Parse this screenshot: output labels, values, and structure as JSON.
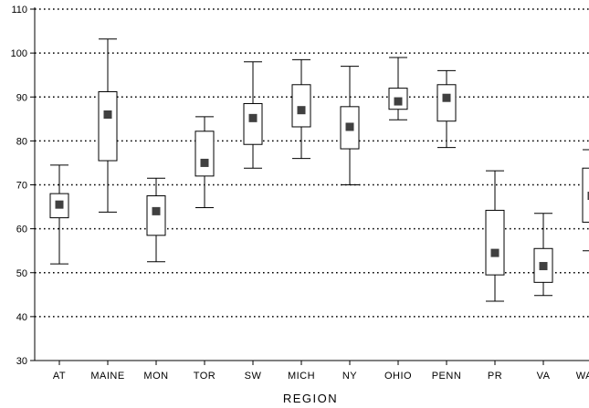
{
  "chart_data": {
    "type": "box",
    "title": "",
    "xlabel": "REGION",
    "ylabel": "",
    "ylim": [
      30,
      110
    ],
    "yticks": [
      30,
      40,
      50,
      60,
      70,
      80,
      90,
      100,
      110
    ],
    "grid": "horizontal-dotted",
    "legend": "none",
    "marker_color": "#404040",
    "box_color": "#000000",
    "categories": [
      "AT",
      "MAINE",
      "MON",
      "TOR",
      "SW",
      "MICH",
      "NY",
      "OHIO",
      "PENN",
      "PR",
      "VA",
      "WASH"
    ],
    "series": [
      {
        "values": [
          {
            "min": 52.0,
            "q1": 62.5,
            "center": 65.5,
            "q3": 68.0,
            "max": 74.5
          },
          {
            "min": 63.8,
            "q1": 75.5,
            "center": 86.0,
            "q3": 91.2,
            "max": 103.2
          },
          {
            "min": 52.5,
            "q1": 58.5,
            "center": 64.0,
            "q3": 67.5,
            "max": 71.5
          },
          {
            "min": 64.8,
            "q1": 72.0,
            "center": 75.0,
            "q3": 82.2,
            "max": 85.5
          },
          {
            "min": 73.8,
            "q1": 79.2,
            "center": 85.2,
            "q3": 88.5,
            "max": 98.0
          },
          {
            "min": 76.0,
            "q1": 83.2,
            "center": 87.0,
            "q3": 92.8,
            "max": 98.5
          },
          {
            "min": 70.0,
            "q1": 78.2,
            "center": 83.2,
            "q3": 87.8,
            "max": 97.0
          },
          {
            "min": 84.8,
            "q1": 87.2,
            "center": 89.0,
            "q3": 92.0,
            "max": 99.0
          },
          {
            "min": 78.5,
            "q1": 84.5,
            "center": 89.8,
            "q3": 92.8,
            "max": 96.0
          },
          {
            "min": 43.5,
            "q1": 49.5,
            "center": 54.5,
            "q3": 64.2,
            "max": 73.2
          },
          {
            "min": 44.8,
            "q1": 47.8,
            "center": 51.5,
            "q3": 55.5,
            "max": 63.5
          },
          {
            "min": 55.0,
            "q1": 61.5,
            "center": 67.5,
            "q3": 73.8,
            "max": 78.0
          }
        ]
      }
    ]
  }
}
